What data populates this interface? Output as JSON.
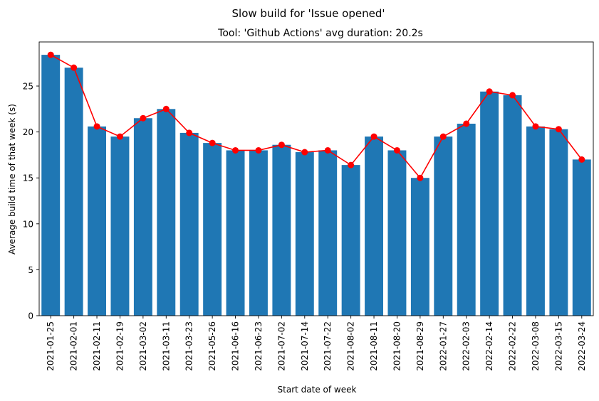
{
  "chart_data": {
    "type": "bar",
    "title": "Slow build for 'Issue opened'",
    "subtitle": "Tool: 'Github Actions' avg duration: 20.2s",
    "xlabel": "Start date of week",
    "ylabel": "Average build time of that week (s)",
    "ylim": [
      0,
      29.8
    ],
    "yticks": [
      0,
      5,
      10,
      15,
      20,
      25
    ],
    "grid": false,
    "categories": [
      "2021-01-25",
      "2021-02-01",
      "2021-02-11",
      "2021-02-19",
      "2021-03-02",
      "2021-03-11",
      "2021-03-23",
      "2021-05-26",
      "2021-06-16",
      "2021-06-23",
      "2021-07-02",
      "2021-07-14",
      "2021-07-22",
      "2021-08-02",
      "2021-08-11",
      "2021-08-20",
      "2021-08-29",
      "2022-01-27",
      "2022-02-03",
      "2022-02-14",
      "2022-02-22",
      "2022-03-08",
      "2022-03-15",
      "2022-03-24"
    ],
    "values": [
      28.4,
      27.0,
      20.6,
      19.5,
      21.5,
      22.5,
      19.9,
      18.8,
      18.0,
      18.0,
      18.6,
      17.8,
      18.0,
      16.4,
      19.5,
      18.0,
      15.0,
      19.5,
      20.9,
      24.4,
      24.0,
      20.6,
      20.3,
      17.0
    ],
    "bar_color": "#1f77b4",
    "line_color": "#ff0000"
  }
}
